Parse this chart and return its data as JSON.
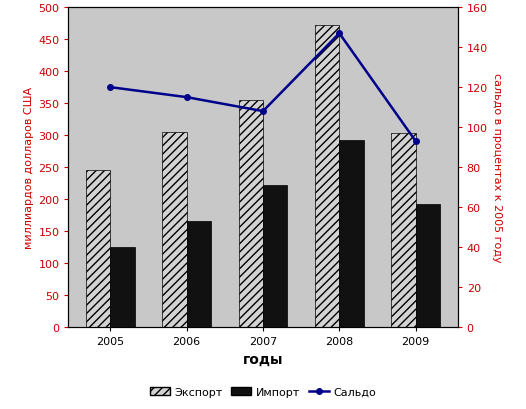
{
  "years": [
    2005,
    2006,
    2007,
    2008,
    2009
  ],
  "export": [
    245,
    305,
    355,
    472,
    303
  ],
  "import_": [
    125,
    165,
    222,
    292,
    193
  ],
  "saldo": [
    120,
    115,
    108,
    147,
    93
  ],
  "left_ylim": [
    0,
    500
  ],
  "right_ylim": [
    0,
    160
  ],
  "left_yticks": [
    0,
    50,
    100,
    150,
    200,
    250,
    300,
    350,
    400,
    450,
    500
  ],
  "right_yticks": [
    0,
    20,
    40,
    60,
    80,
    100,
    120,
    140,
    160
  ],
  "xlabel": "годы",
  "ylabel_left": "миллиардов долларов США",
  "ylabel_right": "сальдо в процентах к 2005 году",
  "legend_export": "Экспорт",
  "legend_import": "Импорт",
  "legend_saldo": "Сальдо",
  "bar_width": 0.32,
  "bg_color": "#c8c8c8",
  "export_hatch": "////",
  "export_facecolor": "#d3d3d3",
  "import_color": "#111111",
  "saldo_color": "#00008B",
  "saldo_linewidth": 1.8,
  "tick_color_left": "#cc0000",
  "tick_color_right": "#cc0000",
  "ylabel_left_color": "#cc0000",
  "ylabel_right_color": "#cc0000",
  "xlabel_fontsize": 10,
  "ylabel_fontsize": 8,
  "tick_fontsize": 8,
  "legend_fontsize": 8
}
